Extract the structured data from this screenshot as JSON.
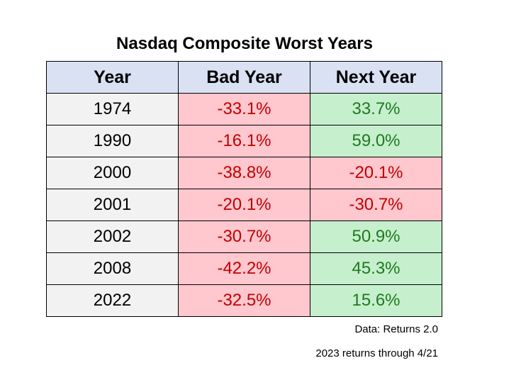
{
  "colors": {
    "header_bg": "#d9e1f2",
    "year_bg": "#f2f2f2",
    "negative_bg": "#ffc7ce",
    "negative_text": "#c00000",
    "positive_bg": "#c6efce",
    "positive_text": "#1f7a1f"
  },
  "chart_data": {
    "type": "table",
    "title": "Nasdaq Composite Worst Years",
    "columns": [
      "Year",
      "Bad Year",
      "Next Year"
    ],
    "rows": [
      {
        "year": "1974",
        "bad_year": "-33.1%",
        "next_year": "33.7%",
        "bad_value": -33.1,
        "next_value": 33.7
      },
      {
        "year": "1990",
        "bad_year": "-16.1%",
        "next_year": "59.0%",
        "bad_value": -16.1,
        "next_value": 59.0
      },
      {
        "year": "2000",
        "bad_year": "-38.8%",
        "next_year": "-20.1%",
        "bad_value": -38.8,
        "next_value": -20.1
      },
      {
        "year": "2001",
        "bad_year": "-20.1%",
        "next_year": "-30.7%",
        "bad_value": -20.1,
        "next_value": -30.7
      },
      {
        "year": "2002",
        "bad_year": "-30.7%",
        "next_year": "50.9%",
        "bad_value": -30.7,
        "next_value": 50.9
      },
      {
        "year": "2008",
        "bad_year": "-42.2%",
        "next_year": "45.3%",
        "bad_value": -42.2,
        "next_value": 45.3
      },
      {
        "year": "2022",
        "bad_year": "-32.5%",
        "next_year": "15.6%",
        "bad_value": -32.5,
        "next_value": 15.6
      }
    ],
    "source": "Data: Returns 2.0",
    "note": "2023 returns through 4/21"
  }
}
